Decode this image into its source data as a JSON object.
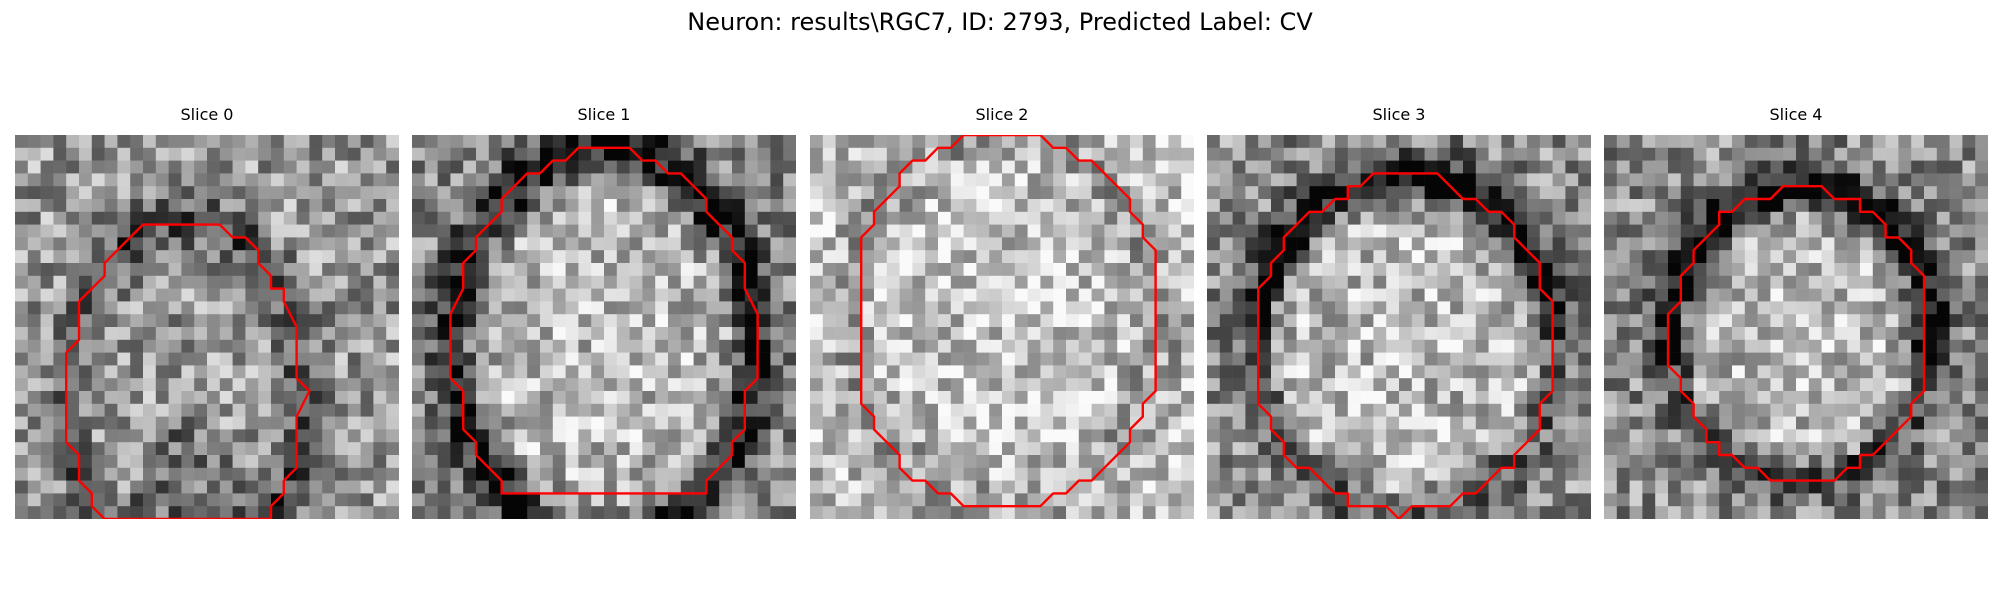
{
  "figure": {
    "title": "Neuron: results\\RGC7, ID: 2793, Predicted Label: CV"
  },
  "contour_color": "#ff0000",
  "panels": [
    {
      "title": "Slice 0",
      "seed": 11,
      "ring": "dark-partial"
    },
    {
      "title": "Slice 1",
      "seed": 23,
      "ring": "dark-round"
    },
    {
      "title": "Slice 2",
      "seed": 37,
      "ring": "faint"
    },
    {
      "title": "Slice 3",
      "seed": 41,
      "ring": "dark-top"
    },
    {
      "title": "Slice 4",
      "seed": 59,
      "ring": "dark-top-strong"
    }
  ]
}
